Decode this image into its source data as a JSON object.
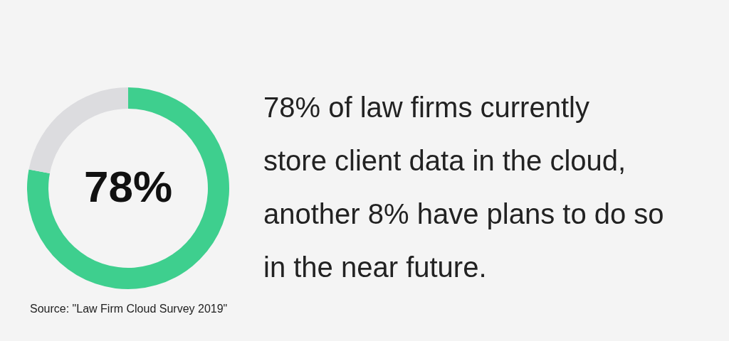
{
  "chart_data": {
    "type": "donut",
    "title": "78% of law firms currently store client data in the cloud, another 8% have plans to do so in the near future.",
    "categories": [
      null,
      null
    ],
    "values": [
      78,
      22
    ],
    "colors": [
      "#3ecf8e",
      "#dcdcdf"
    ],
    "value_labels": [
      "78%",
      null
    ],
    "legend": false,
    "annotations": [
      "Source:  \"Law Firm Cloud Survey 2019\""
    ]
  }
}
